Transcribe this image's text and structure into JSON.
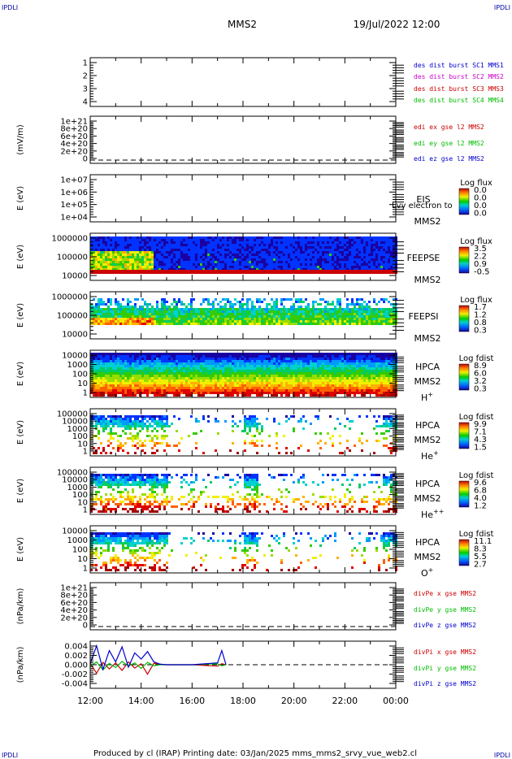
{
  "corner_label": "IPDLI",
  "header": {
    "spacecraft": "MMS2",
    "datetime": "19/Jul/2022 12:00"
  },
  "footer": "Produced by cl (IRAP)   Printing date: 03/Jan/2025   mms_mms2_srvy_vue_web2.cl",
  "overlap_text": "Lvy electron to",
  "chart_data": [
    {
      "type": "line",
      "ylabel": "",
      "ylim": [
        0.5,
        4.5
      ],
      "yticks": [
        "1",
        "2",
        "3",
        "4"
      ],
      "legend": [
        {
          "text": "des dist burst SC1 MMS1",
          "color": "#0000cc"
        },
        {
          "text": "des dist burst SC2 MMS2",
          "color": "#cc00cc"
        },
        {
          "text": "des dist burst SC3 MMS3",
          "color": "#cc0000"
        },
        {
          "text": "des dist burst SC4 MMS4",
          "color": "#00bb00"
        }
      ]
    },
    {
      "type": "line",
      "ylabel": "(mV/m)",
      "yticks": [
        "1e+21",
        "8e+20",
        "6e+20",
        "4e+20",
        "2e+20",
        "0"
      ],
      "legend": [
        {
          "text": "edi ex gse l2 MMS2",
          "color": "#cc0000"
        },
        {
          "text": "edi ey gse l2 MMS2",
          "color": "#00bb00"
        },
        {
          "text": "edi ez gse l2 MMS2",
          "color": "#0000cc"
        }
      ]
    },
    {
      "type": "heatmap",
      "ylabel": "E (eV)",
      "scale": "log",
      "yticks": [
        "1e+07",
        "1e+06",
        "1e+05",
        "1e+04"
      ],
      "instrument": [
        "EIS",
        "MMS2"
      ],
      "colorbar_title": "Log flux",
      "colorbar_ticks": [
        "0.0",
        "0.0",
        "0.0",
        "0.0"
      ],
      "pattern": "none"
    },
    {
      "type": "heatmap",
      "ylabel": "E (eV)",
      "scale": "log",
      "yticks": [
        "1000000",
        "100000",
        "10000"
      ],
      "instrument": [
        "FEEPSE",
        "MMS2"
      ],
      "colorbar_title": "Log flux",
      "colorbar_ticks": [
        "3.5",
        "2.2",
        "0.9",
        "-0.5"
      ],
      "pattern": "feepse"
    },
    {
      "type": "heatmap",
      "ylabel": "E (eV)",
      "scale": "log",
      "yticks": [
        "1000000",
        "100000",
        "10000"
      ],
      "instrument": [
        "FEEPSI",
        "MMS2"
      ],
      "colorbar_title": "Log flux",
      "colorbar_ticks": [
        "1.7",
        "1.2",
        "0.8",
        "0.3"
      ],
      "pattern": "feepsi"
    },
    {
      "type": "heatmap",
      "ylabel": "E (eV)",
      "scale": "log",
      "yticks": [
        "10000",
        "1000",
        "100",
        "10",
        "1"
      ],
      "instrument": [
        "HPCA",
        "MMS2",
        "H+"
      ],
      "colorbar_title": "Log fdist",
      "colorbar_ticks": [
        "8.9",
        "6.0",
        "3.2",
        "0.3"
      ],
      "pattern": "hplus"
    },
    {
      "type": "heatmap",
      "ylabel": "E (eV)",
      "scale": "log",
      "yticks": [
        "100000",
        "10000",
        "1000",
        "100",
        "10",
        "1"
      ],
      "instrument": [
        "HPCA",
        "MMS2",
        "He+"
      ],
      "colorbar_title": "Log fdist",
      "colorbar_ticks": [
        "9.9",
        "7.1",
        "4.3",
        "1.5"
      ],
      "pattern": "heplus"
    },
    {
      "type": "heatmap",
      "ylabel": "E (eV)",
      "scale": "log",
      "yticks": [
        "100000",
        "10000",
        "1000",
        "100",
        "10",
        "1"
      ],
      "instrument": [
        "HPCA",
        "MMS2",
        "He++"
      ],
      "colorbar_title": "Log fdist",
      "colorbar_ticks": [
        "9.6",
        "6.8",
        "4.0",
        "1.2"
      ],
      "pattern": "heplusplus"
    },
    {
      "type": "heatmap",
      "ylabel": "E (eV)",
      "scale": "log",
      "yticks": [
        "10000",
        "1000",
        "100",
        "10",
        "1"
      ],
      "instrument": [
        "HPCA",
        "MMS2",
        "O+"
      ],
      "colorbar_title": "Log fdist",
      "colorbar_ticks": [
        "11.1",
        "8.3",
        "5.5",
        "2.7"
      ],
      "pattern": "oplus"
    },
    {
      "type": "line",
      "ylabel": "(nPa/km)",
      "yticks": [
        "1e+21",
        "8e+20",
        "6e+20",
        "4e+20",
        "2e+20",
        "0"
      ],
      "legend": [
        {
          "text": "divPe x gse MMS2",
          "color": "#cc0000"
        },
        {
          "text": "divPe y gse MMS2",
          "color": "#00bb00"
        },
        {
          "text": "divPe z gse MMS2",
          "color": "#0000cc"
        }
      ]
    },
    {
      "type": "line",
      "ylabel": "(nPa/km)",
      "ylim": [
        -0.005,
        0.005
      ],
      "yticks": [
        "0.004",
        "0.002",
        "0.000",
        "-0.002",
        "-0.004"
      ],
      "legend": [
        {
          "text": "divPi x gse MMS2",
          "color": "#cc0000"
        },
        {
          "text": "divPi y gse MMS2",
          "color": "#00bb00"
        },
        {
          "text": "divPi z gse MMS2",
          "color": "#0000cc"
        }
      ],
      "series": [
        {
          "name": "divPi x gse MMS2",
          "color": "#cc0000",
          "x": [
            "12:00",
            "12:15",
            "12:30",
            "12:45",
            "13:00",
            "13:15",
            "13:30",
            "13:45",
            "14:00",
            "14:15",
            "14:30",
            "14:45",
            "15:00",
            "16:00",
            "17:00",
            "17:10",
            "17:20"
          ],
          "values": [
            0.0003,
            -0.0018,
            0.0005,
            -0.0009,
            0.0004,
            -0.0012,
            0.0006,
            -0.0007,
            0.0002,
            -0.002,
            0.0003,
            0.0001,
            0.0,
            0.0,
            -0.0003,
            0.0002,
            0.0
          ]
        },
        {
          "name": "divPi y gse MMS2",
          "color": "#00bb00",
          "x": [
            "12:00",
            "12:15",
            "12:30",
            "12:45",
            "13:00",
            "13:15",
            "13:30",
            "13:45",
            "14:00",
            "14:15",
            "14:30",
            "14:45",
            "15:00",
            "16:00",
            "17:00",
            "17:10",
            "17:20"
          ],
          "values": [
            -0.0004,
            0.0006,
            -0.0011,
            0.0003,
            -0.0006,
            0.0007,
            -0.0003,
            0.0004,
            -0.0008,
            0.0005,
            -0.0002,
            0.0,
            0.0,
            0.0,
            0.0002,
            -0.0002,
            0.0
          ]
        },
        {
          "name": "divPi z gse MMS2",
          "color": "#0000cc",
          "x": [
            "12:00",
            "12:15",
            "12:30",
            "12:45",
            "13:00",
            "13:15",
            "13:30",
            "13:45",
            "14:00",
            "14:15",
            "14:30",
            "14:45",
            "15:00",
            "16:00",
            "17:00",
            "17:10",
            "17:20"
          ],
          "values": [
            0.0002,
            0.004,
            -0.001,
            0.003,
            0.0006,
            0.0038,
            -0.0005,
            0.0025,
            0.0012,
            0.0028,
            0.0006,
            0.0001,
            0.0,
            0.0,
            0.0004,
            0.003,
            0.0
          ]
        }
      ],
      "zero_line": "dashed"
    }
  ],
  "time_axis": [
    "12:00",
    "14:00",
    "16:00",
    "18:00",
    "20:00",
    "22:00",
    "00:00"
  ]
}
